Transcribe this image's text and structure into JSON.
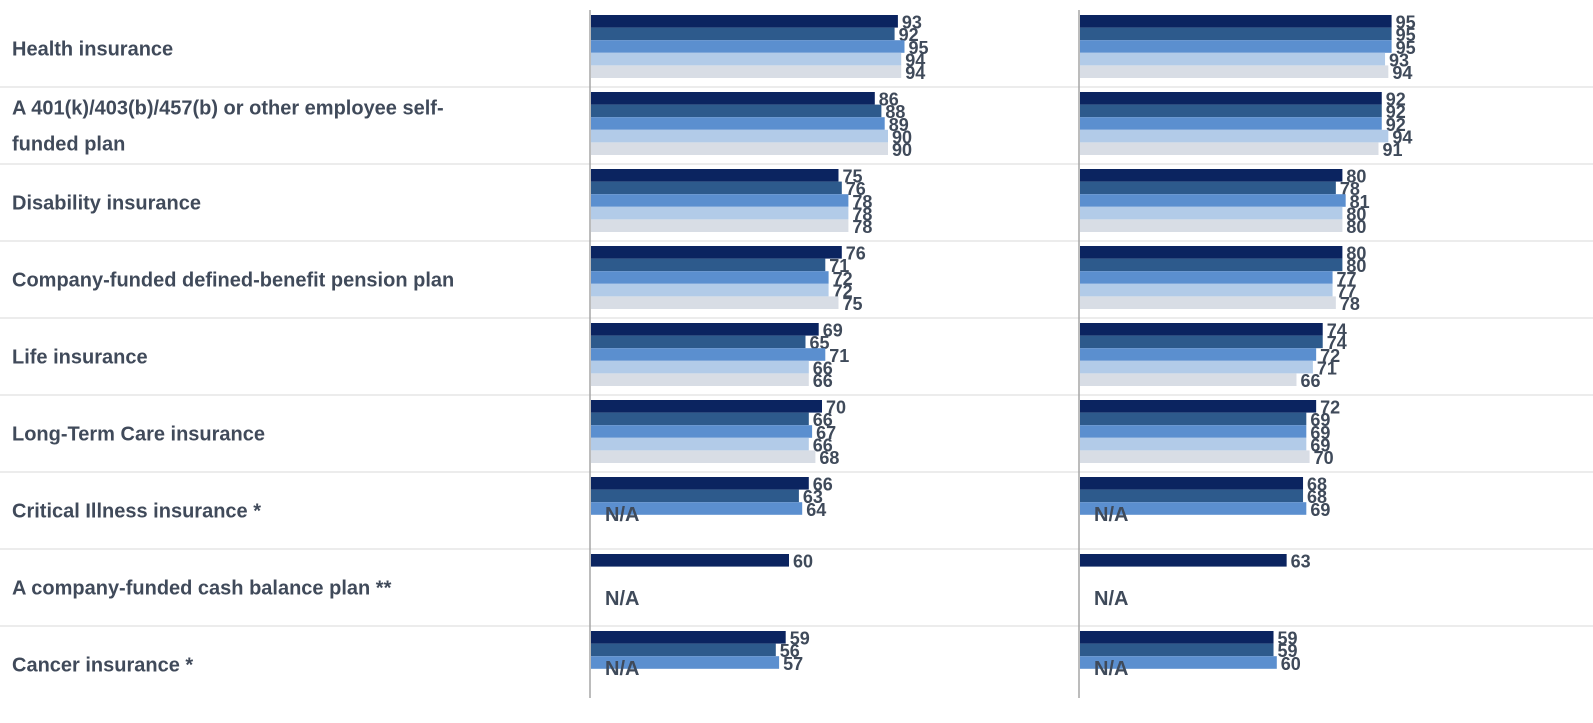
{
  "colors": [
    "#0b2460",
    "#2d5a8c",
    "#5b8fcf",
    "#b2cbe8",
    "#d8dde5"
  ],
  "na_text": "N/A",
  "chart_data": {
    "type": "bar",
    "orientation": "horizontal",
    "categories": [
      "Health insurance",
      "A 401(k)/403(b)/457(b) or other employee self-funded plan",
      "Disability insurance",
      "Company-funded defined-benefit pension plan",
      "Life insurance",
      "Long-Term Care insurance",
      "Critical Illness insurance *",
      "A company-funded cash balance plan **",
      "Cancer insurance *"
    ],
    "category_lines": [
      [
        "Health insurance"
      ],
      [
        "A 401(k)/403(b)/457(b) or other employee self-",
        "funded plan"
      ],
      [
        "Disability insurance"
      ],
      [
        "Company-funded defined-benefit pension plan"
      ],
      [
        "Life insurance"
      ],
      [
        "Long-Term Care insurance"
      ],
      [
        "Critical Illness insurance *"
      ],
      [
        "A company-funded cash balance plan **"
      ],
      [
        "Cancer insurance *"
      ]
    ],
    "xlim": [
      0,
      100
    ],
    "grid": false,
    "panels": [
      {
        "values": [
          [
            93,
            92,
            95,
            94,
            94
          ],
          [
            86,
            88,
            89,
            90,
            90
          ],
          [
            75,
            76,
            78,
            78,
            78
          ],
          [
            76,
            71,
            72,
            72,
            75
          ],
          [
            69,
            65,
            71,
            66,
            66
          ],
          [
            70,
            66,
            67,
            66,
            68
          ],
          [
            66,
            63,
            64,
            null,
            null
          ],
          [
            60,
            null,
            null,
            null,
            null
          ],
          [
            59,
            56,
            57,
            null,
            null
          ]
        ]
      },
      {
        "values": [
          [
            95,
            95,
            95,
            93,
            94
          ],
          [
            92,
            92,
            92,
            94,
            91
          ],
          [
            80,
            78,
            81,
            80,
            80
          ],
          [
            80,
            80,
            77,
            77,
            78
          ],
          [
            74,
            74,
            72,
            71,
            66
          ],
          [
            72,
            69,
            69,
            69,
            70
          ],
          [
            68,
            68,
            69,
            null,
            null
          ],
          [
            63,
            null,
            null,
            null,
            null
          ],
          [
            59,
            59,
            60,
            null,
            null
          ]
        ]
      }
    ]
  }
}
